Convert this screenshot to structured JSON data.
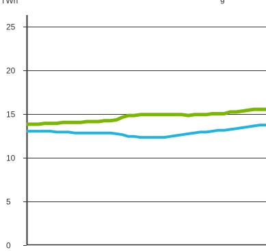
{
  "chart_data": {
    "type": "line",
    "ylabel": "TWh",
    "header_fragment": "g",
    "ylim": [
      0,
      25
    ],
    "yticks": [
      0,
      5,
      10,
      15,
      20,
      25
    ],
    "grid": true,
    "x": [
      0,
      1,
      2,
      3,
      4,
      5,
      6,
      7,
      8,
      9,
      10,
      11,
      12,
      13,
      14,
      15,
      16,
      17,
      18,
      19,
      20,
      21,
      22,
      23,
      24,
      25,
      26,
      27,
      28,
      29,
      30,
      31,
      32,
      33,
      34,
      35,
      36,
      37,
      38,
      39,
      40
    ],
    "series": [
      {
        "color": "#7ab800",
        "values": [
          13.8,
          13.8,
          13.8,
          13.9,
          13.9,
          13.9,
          14.0,
          14.0,
          14.0,
          14.0,
          14.1,
          14.1,
          14.1,
          14.2,
          14.2,
          14.3,
          14.6,
          14.8,
          14.8,
          14.9,
          14.9,
          14.9,
          14.9,
          14.9,
          14.9,
          14.9,
          14.9,
          14.8,
          14.9,
          14.9,
          14.9,
          15.0,
          15.0,
          15.0,
          15.2,
          15.2,
          15.3,
          15.4,
          15.5,
          15.5,
          15.5
        ]
      },
      {
        "color": "#1fb5e0",
        "values": [
          13.0,
          13.0,
          13.0,
          13.0,
          13.0,
          12.9,
          12.9,
          12.9,
          12.8,
          12.8,
          12.8,
          12.8,
          12.8,
          12.8,
          12.8,
          12.7,
          12.6,
          12.4,
          12.4,
          12.3,
          12.3,
          12.3,
          12.3,
          12.3,
          12.4,
          12.5,
          12.6,
          12.7,
          12.8,
          12.9,
          12.9,
          13.0,
          13.1,
          13.1,
          13.2,
          13.3,
          13.4,
          13.5,
          13.6,
          13.7,
          13.7
        ]
      }
    ]
  }
}
